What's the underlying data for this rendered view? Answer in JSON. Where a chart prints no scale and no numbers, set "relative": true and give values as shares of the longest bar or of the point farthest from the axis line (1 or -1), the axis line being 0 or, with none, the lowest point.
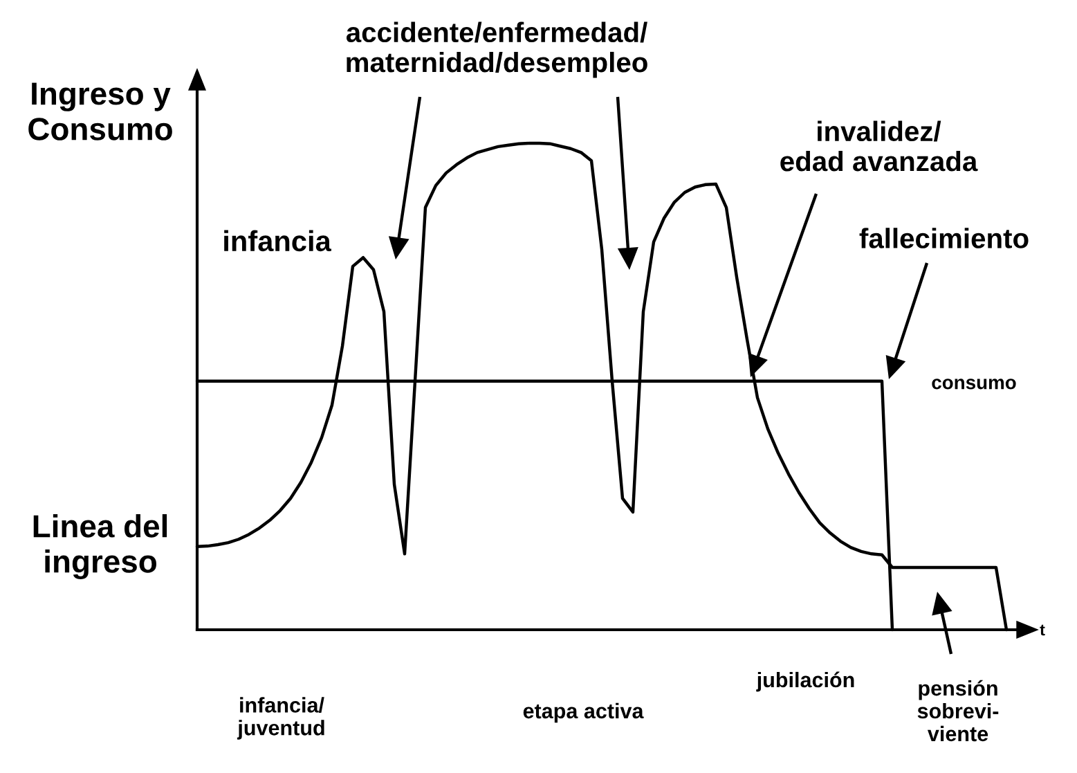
{
  "chart_data": {
    "type": "line",
    "relative": true,
    "ylabel": "Ingreso y\nConsumo",
    "xlabel": "t",
    "categories": [
      null,
      null,
      null,
      null,
      null,
      null,
      null,
      null,
      null,
      null,
      null,
      null,
      null,
      null,
      null,
      null,
      null,
      null,
      null,
      null,
      null,
      null,
      null,
      null,
      null,
      null,
      null,
      null,
      null,
      null,
      null,
      null,
      null,
      null,
      null,
      null,
      null,
      null,
      null,
      null,
      null,
      null,
      null,
      null,
      null,
      null,
      null,
      null,
      null,
      null,
      null,
      null,
      null,
      null,
      null,
      null,
      null,
      null,
      null,
      null,
      null,
      null,
      null,
      null,
      null,
      null,
      null,
      null,
      null,
      null,
      null,
      null,
      null,
      null,
      null,
      null,
      null,
      null,
      null,
      null,
      null
    ],
    "series": [
      {
        "name": "Linea del ingreso",
        "color": "#000000",
        "values": [
          0.171,
          0.172,
          0.175,
          0.179,
          0.186,
          0.196,
          0.209,
          0.225,
          0.245,
          0.27,
          0.303,
          0.344,
          0.395,
          0.462,
          0.583,
          0.747,
          0.765,
          0.74,
          0.654,
          0.299,
          0.156,
          0.511,
          0.868,
          0.913,
          0.939,
          0.956,
          0.97,
          0.981,
          0.987,
          0.993,
          0.996,
          0.999,
          1,
          1,
          0.999,
          0.994,
          0.989,
          0.981,
          0.964,
          0.782,
          0.511,
          0.27,
          0.242,
          0.654,
          0.797,
          0.846,
          0.879,
          0.899,
          0.91,
          0.915,
          0.916,
          0.868,
          0.725,
          0.597,
          0.477,
          0.413,
          0.363,
          0.32,
          0.282,
          0.249,
          0.22,
          0.199,
          0.182,
          0.169,
          0.161,
          0.156,
          0.154,
          0.128,
          0.128,
          0.128,
          0.128,
          0.128,
          0.128,
          0.128,
          0.128,
          0.128,
          0.128,
          0.128,
          0,
          null,
          null
        ]
      },
      {
        "name": "consumo",
        "color": "#000000",
        "values": [
          0.511,
          0.511,
          0.511,
          0.511,
          0.511,
          0.511,
          0.511,
          0.511,
          0.511,
          0.511,
          0.511,
          0.511,
          0.511,
          0.511,
          0.511,
          0.511,
          0.511,
          0.511,
          0.511,
          0.511,
          0.511,
          0.511,
          0.511,
          0.511,
          0.511,
          0.511,
          0.511,
          0.511,
          0.511,
          0.511,
          0.511,
          0.511,
          0.511,
          0.511,
          0.511,
          0.511,
          0.511,
          0.511,
          0.511,
          0.511,
          0.511,
          0.511,
          0.511,
          0.511,
          0.511,
          0.511,
          0.511,
          0.511,
          0.511,
          0.511,
          0.511,
          0.511,
          0.511,
          0.511,
          0.511,
          0.511,
          0.511,
          0.511,
          0.511,
          0.511,
          0.511,
          0.511,
          0.511,
          0.511,
          0.511,
          0.511,
          0.511,
          0,
          null,
          null,
          null,
          null,
          null,
          null,
          null,
          null,
          null,
          null,
          null,
          null,
          null
        ]
      }
    ],
    "annotations": [
      "infancia",
      "accidente/enfermedad/\nmaternidad/desempleo",
      "invalidez/\nedad avanzada",
      "fallecimiento",
      "infancia/\njuventud",
      "etapa activa",
      "jubilación",
      "pensión\nsobrevi-\nviente"
    ],
    "legend": false,
    "marker": "none",
    "line_style": "solid"
  }
}
